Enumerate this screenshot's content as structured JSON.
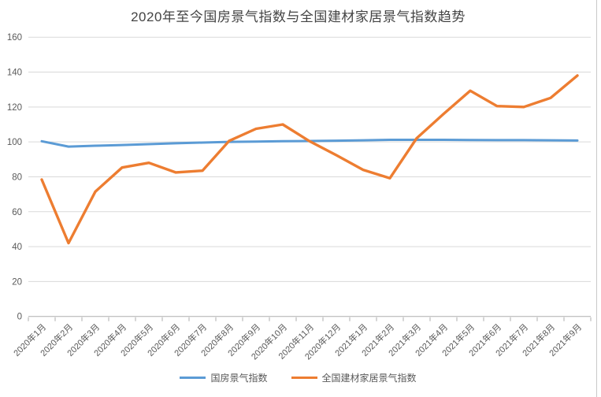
{
  "chart_data": {
    "type": "line",
    "title": "2020年至今国房景气指数与全国建材家居景气指数趋势",
    "categories": [
      "2020年1月",
      "2020年2月",
      "2020年3月",
      "2020年4月",
      "2020年5月",
      "2020年6月",
      "2020年7月",
      "2020年8月",
      "2020年9月",
      "2020年10月",
      "2020年11月",
      "2020年12月",
      "2021年1月",
      "2021年2月",
      "2021年3月",
      "2021年4月",
      "2021年5月",
      "2021年6月",
      "2021年7月",
      "2021年8月",
      "2021年9月"
    ],
    "series": [
      {
        "name": "国房景气指数",
        "color": "#5B9BD5",
        "values": [
          100.4,
          97.3,
          97.8,
          98.2,
          98.7,
          99.2,
          99.6,
          100.0,
          100.2,
          100.4,
          100.5,
          100.7,
          100.9,
          101.2,
          101.2,
          101.2,
          101.1,
          101.0,
          101.0,
          100.9,
          100.8
        ]
      },
      {
        "name": "全国建材家居景气指数",
        "color": "#ED7D31",
        "values": [
          78.4,
          42.0,
          71.5,
          85.3,
          88.0,
          82.5,
          83.5,
          100.6,
          107.5,
          110.0,
          100.4,
          92.4,
          84.0,
          79.2,
          102.1,
          116.0,
          129.3,
          120.5,
          120.0,
          125.2,
          138.0
        ]
      }
    ],
    "ylim": [
      0,
      160
    ],
    "yticks": [
      0,
      20,
      40,
      60,
      80,
      100,
      120,
      140,
      160
    ],
    "grid": "horizontal",
    "legend_position": "bottom",
    "colors": {
      "grid_line": "#d9d9d9",
      "axis_line": "#adadad",
      "tick_label": "#595959",
      "title_text": "#444444",
      "background": "#ffffff"
    }
  }
}
